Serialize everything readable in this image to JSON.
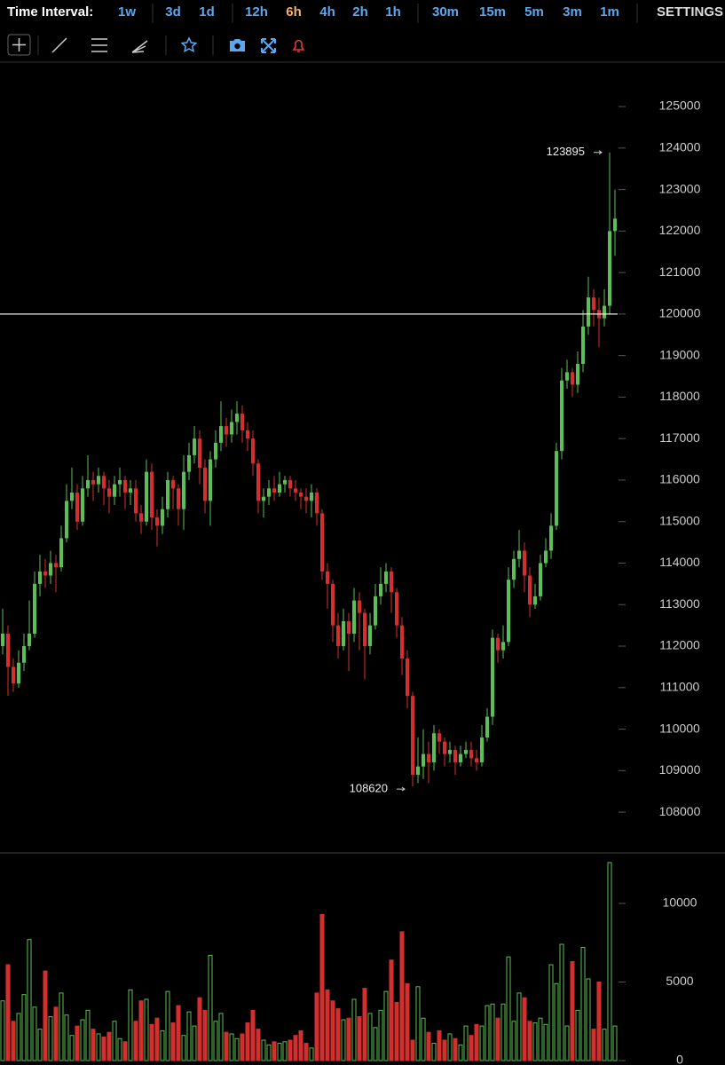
{
  "toolbar": {
    "label": "Time Interval:",
    "intervals": [
      "1w",
      "3d",
      "1d",
      "12h",
      "6h",
      "4h",
      "2h",
      "1h",
      "30m",
      "15m",
      "5m",
      "3m",
      "1m"
    ],
    "active": 4,
    "settings": "SETTINGS"
  },
  "chart_data": {
    "type": "candlestick",
    "up_color": "#5cbf55",
    "down_color": "#d32f2f",
    "open": [
      112000,
      112300,
      111500,
      111100,
      111600,
      112000,
      112300,
      113500,
      113800,
      113700,
      114000,
      113900,
      114600,
      115500,
      115700,
      115000,
      115800,
      116000,
      115900,
      116100,
      115800,
      115600,
      115900,
      116000,
      115700,
      115800,
      115200,
      115000,
      116200,
      115100,
      114900,
      115300,
      116000,
      115800,
      115300,
      116200,
      116600,
      117000,
      116300,
      115500,
      116500,
      116900,
      117300,
      117100,
      117400,
      117600,
      117200,
      117000,
      116400,
      115500,
      115600,
      115800,
      115700,
      115900,
      116000,
      115800,
      115700,
      115600,
      115500,
      115700,
      115200,
      113800,
      113500,
      112500,
      112000,
      112600,
      112300,
      113100,
      112800,
      112000,
      112500,
      113200,
      113500,
      113800,
      113300,
      112500,
      111700,
      110800,
      108900,
      109100,
      109400,
      109200,
      109900,
      109700,
      109400,
      109500,
      109200,
      109400,
      109500,
      109300,
      109200,
      109800,
      110300,
      112200,
      111900,
      112100,
      113600,
      114100,
      114300,
      113700,
      113000,
      113200,
      114000,
      114300,
      114900,
      116700,
      118400,
      118600,
      118300,
      118800,
      119700,
      120400,
      120100,
      119900,
      120200,
      122000
    ],
    "high": [
      112900,
      112500,
      111700,
      111900,
      112300,
      113100,
      113800,
      114200,
      114100,
      114300,
      114200,
      114900,
      115900,
      116300,
      115900,
      116100,
      116600,
      116200,
      116300,
      116200,
      116000,
      116100,
      116300,
      116100,
      116000,
      116000,
      115400,
      116500,
      116400,
      115300,
      115600,
      116200,
      116100,
      115900,
      116600,
      116900,
      117300,
      117200,
      116500,
      116700,
      117200,
      117900,
      117500,
      117700,
      117900,
      117800,
      117400,
      117200,
      116500,
      115800,
      116000,
      116100,
      116200,
      116100,
      116100,
      116000,
      115800,
      115800,
      115900,
      115800,
      115300,
      114000,
      113600,
      112800,
      112900,
      112800,
      113400,
      113300,
      112900,
      112800,
      113500,
      113900,
      114000,
      113900,
      113400,
      112700,
      111900,
      110900,
      109800,
      110000,
      109700,
      110100,
      110000,
      109800,
      109700,
      109600,
      109600,
      109700,
      109700,
      109500,
      110100,
      110500,
      112400,
      112300,
      112500,
      113900,
      114300,
      114800,
      114500,
      113900,
      113500,
      114200,
      114600,
      115200,
      116900,
      118700,
      118900,
      118700,
      119100,
      120100,
      120900,
      120600,
      120400,
      120600,
      123895,
      123000
    ],
    "low": [
      111800,
      110800,
      110900,
      111000,
      111400,
      111900,
      112200,
      113200,
      113400,
      113500,
      113300,
      113800,
      114500,
      115300,
      114800,
      114900,
      115600,
      115500,
      115700,
      115400,
      115200,
      115400,
      115600,
      115300,
      115400,
      115000,
      114700,
      114900,
      114800,
      114400,
      114700,
      115100,
      115300,
      114900,
      114800,
      116000,
      116400,
      115900,
      115200,
      114900,
      116300,
      116700,
      116800,
      116900,
      117100,
      116900,
      116700,
      116100,
      115200,
      115100,
      115400,
      115500,
      115600,
      115700,
      115600,
      115500,
      115300,
      115200,
      115100,
      114900,
      113600,
      112900,
      112100,
      111700,
      111900,
      111400,
      112100,
      111900,
      111200,
      111800,
      112400,
      113000,
      113300,
      112800,
      112200,
      111300,
      110500,
      108620,
      108700,
      108800,
      108700,
      109000,
      109400,
      109100,
      109200,
      108900,
      109100,
      109300,
      109100,
      109000,
      109100,
      109700,
      110100,
      111600,
      111700,
      112000,
      113400,
      113900,
      113300,
      112700,
      112900,
      113100,
      113900,
      114100,
      114800,
      116500,
      118200,
      118000,
      118100,
      118600,
      119500,
      119700,
      119200,
      119700,
      120000,
      121400
    ],
    "close": [
      112300,
      111500,
      111100,
      111600,
      112000,
      112300,
      113500,
      113800,
      113700,
      114000,
      113900,
      114600,
      115500,
      115700,
      115000,
      115800,
      116000,
      115900,
      116100,
      115800,
      115600,
      115900,
      116000,
      115700,
      115800,
      115200,
      115000,
      116200,
      115100,
      114900,
      115300,
      116000,
      115800,
      115300,
      116200,
      116600,
      117000,
      116300,
      115500,
      116500,
      116900,
      117300,
      117100,
      117400,
      117600,
      117200,
      117000,
      116400,
      115500,
      115600,
      115800,
      115700,
      115900,
      116000,
      115800,
      115700,
      115600,
      115500,
      115700,
      115200,
      113800,
      113500,
      112500,
      112000,
      112600,
      112300,
      113100,
      112800,
      112000,
      112500,
      113200,
      113500,
      113800,
      113300,
      112500,
      111700,
      110800,
      108900,
      109100,
      109400,
      109200,
      109900,
      109700,
      109400,
      109500,
      109200,
      109400,
      109500,
      109300,
      109200,
      109800,
      110300,
      112200,
      111900,
      112100,
      113600,
      114100,
      114300,
      113700,
      113000,
      113200,
      114000,
      114300,
      114900,
      116700,
      118400,
      118600,
      118300,
      118800,
      119700,
      120400,
      120100,
      119900,
      120200,
      122000,
      122300
    ],
    "volume": [
      3800,
      6100,
      2500,
      3000,
      4200,
      7700,
      3400,
      2000,
      5700,
      2800,
      3400,
      4300,
      2900,
      1600,
      2200,
      2600,
      3200,
      2000,
      1700,
      1500,
      1800,
      2500,
      1400,
      1200,
      4500,
      2500,
      3800,
      3900,
      2300,
      2700,
      1900,
      4400,
      2400,
      3500,
      1600,
      3100,
      2200,
      4000,
      3200,
      6700,
      2500,
      3000,
      1800,
      1700,
      1400,
      1700,
      2400,
      3200,
      2000,
      1300,
      1000,
      1200,
      1100,
      1200,
      1300,
      1600,
      1900,
      1100,
      800,
      4300,
      9300,
      4500,
      3800,
      3300,
      2600,
      2700,
      3900,
      2800,
      4600,
      3000,
      2100,
      3200,
      4400,
      6400,
      3700,
      8200,
      4900,
      1300,
      4700,
      2700,
      1800,
      1100,
      1900,
      1300,
      1700,
      1400,
      1000,
      2200,
      1600,
      2300,
      2200,
      3500,
      3600,
      2700,
      3600,
      6600,
      2500,
      4300,
      4000,
      2500,
      2400,
      2700,
      2300,
      6100,
      4900,
      7400,
      2200,
      6300,
      3200,
      7200,
      5200,
      2000,
      5000,
      2000,
      12600,
      2200
    ],
    "ylim": [
      107040,
      126070
    ],
    "yticks": [
      108000,
      109000,
      110000,
      111000,
      112000,
      113000,
      114000,
      115000,
      116000,
      117000,
      118000,
      119000,
      120000,
      121000,
      122000,
      123000,
      124000,
      125000
    ],
    "volume_ylim": [
      -280,
      13160
    ],
    "volume_yticks": [
      0,
      5000,
      10000
    ],
    "hline": 120000,
    "annotations": [
      123895,
      108620
    ]
  }
}
